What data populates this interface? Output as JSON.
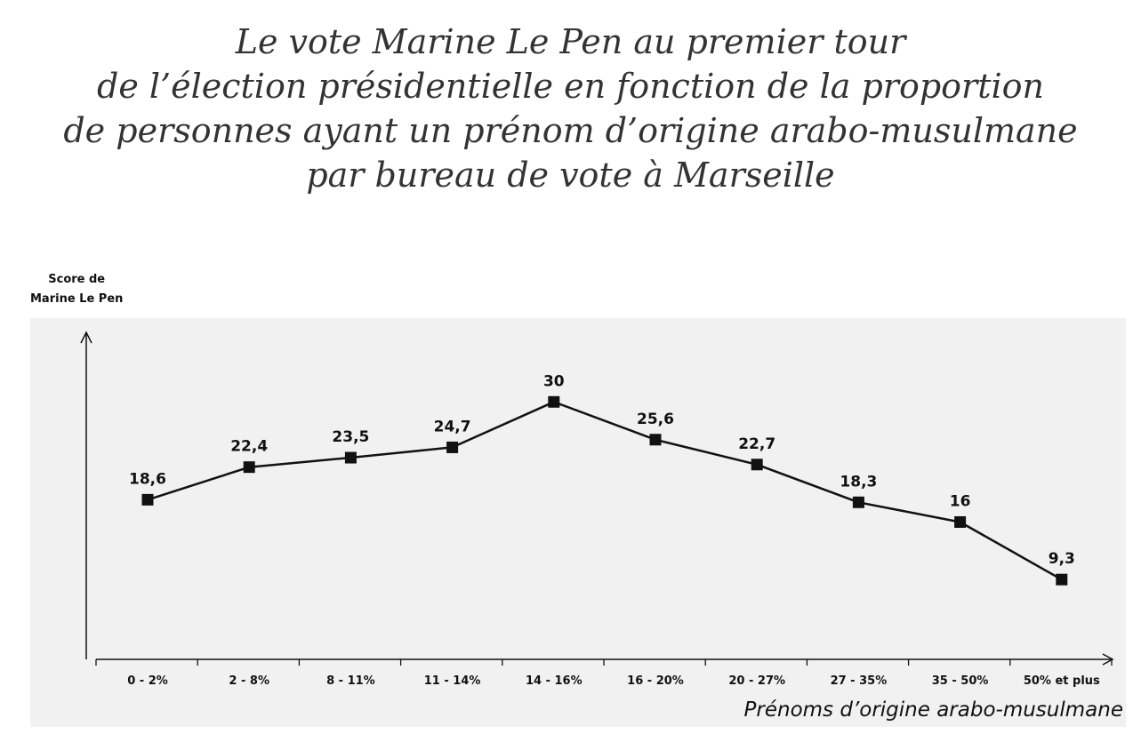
{
  "chart_data": {
    "type": "line",
    "title_lines": [
      "Le vote Marine Le Pen au premier tour",
      "de l’élection présidentielle en fonction de la proportion",
      "de personnes ayant un prénom d’origine arabo-musulmane",
      "par bureau de vote à Marseille"
    ],
    "ylabel_lines": [
      "Score de",
      "Marine Le Pen"
    ],
    "xlabel": "Prénoms d’origine arabo-musulmane",
    "categories": [
      "0 - 2%",
      "2 - 8%",
      "8 - 11%",
      "11 - 14%",
      "14 - 16%",
      "16 - 20%",
      "20 - 27%",
      "27 - 35%",
      "35 - 50%",
      "50% et plus"
    ],
    "series": [
      {
        "values": [
          18.6,
          22.4,
          23.5,
          24.7,
          30,
          25.6,
          22.7,
          18.3,
          16,
          9.3
        ],
        "data_labels": [
          "18,6",
          "22,4",
          "23,5",
          "24,7",
          "30",
          "25,6",
          "22,7",
          "18,3",
          "16",
          "9,3"
        ],
        "color": "#111111",
        "marker": "square"
      }
    ],
    "ylim": [
      0,
      38
    ],
    "grid": false,
    "legend": "none"
  }
}
